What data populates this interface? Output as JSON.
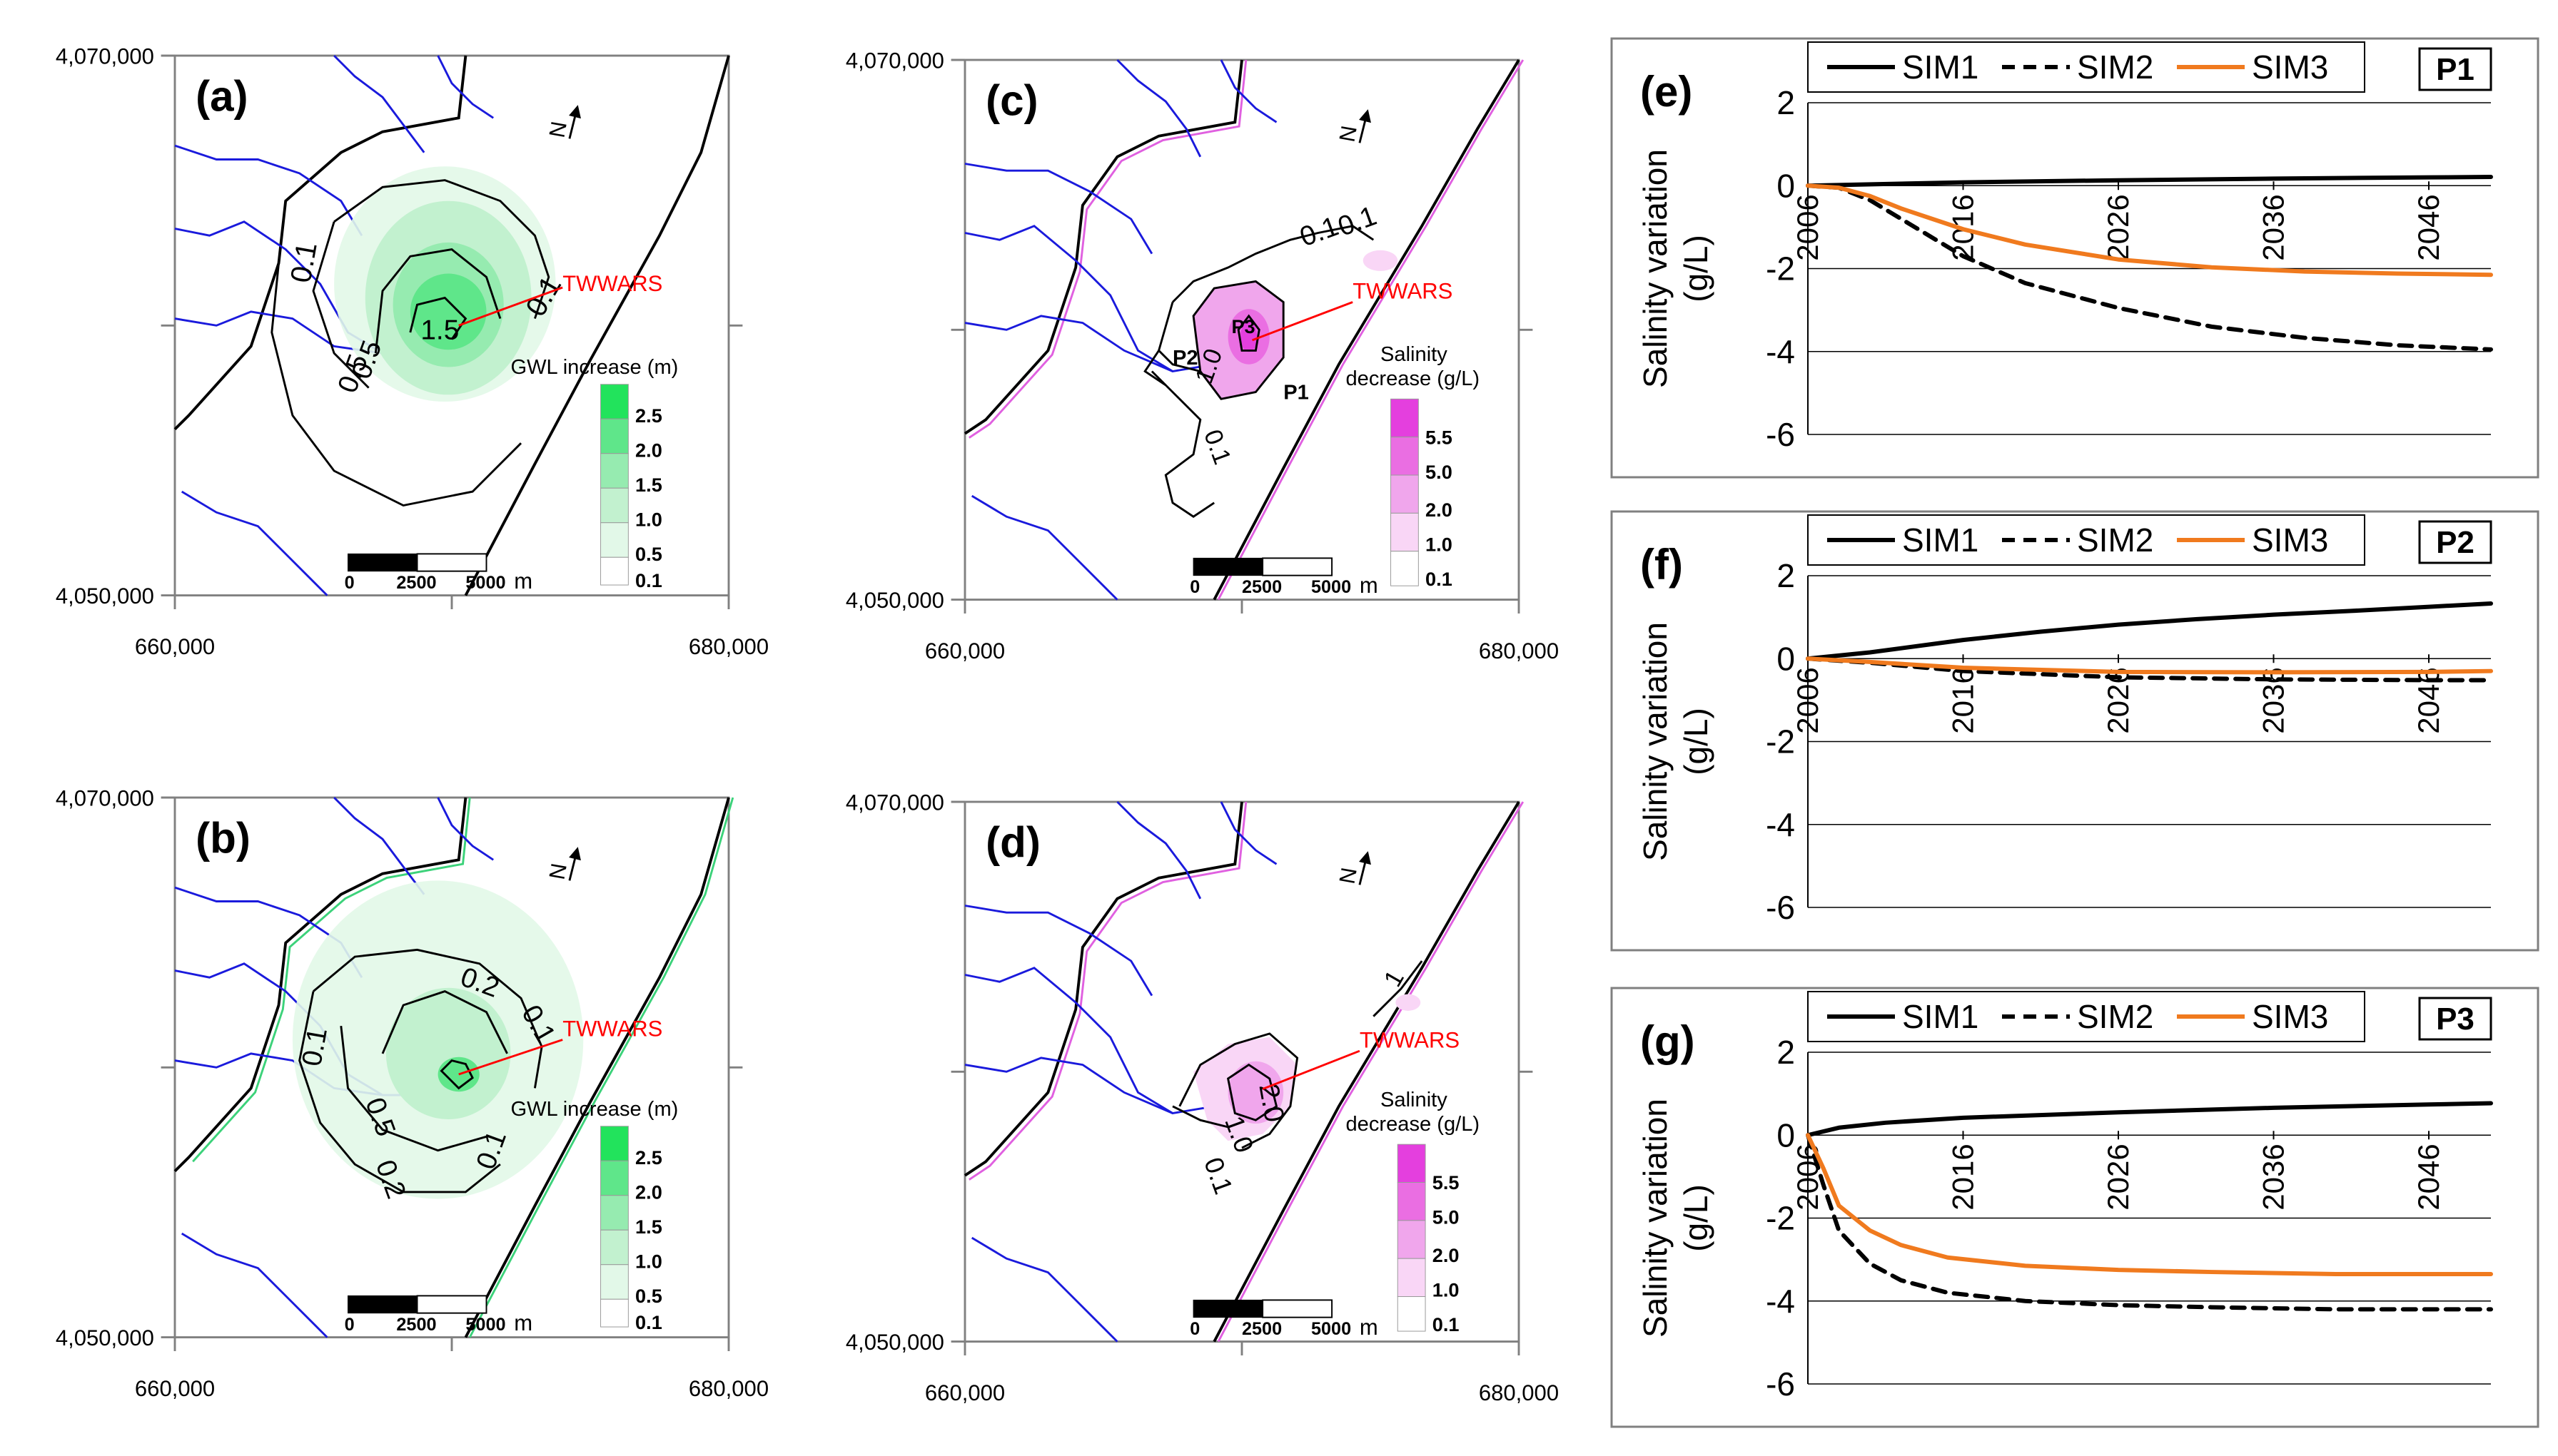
{
  "figure": {
    "colors": {
      "river": "#1a1adc",
      "contour": "#000000",
      "green_outline": "#3cd27a",
      "pink_outline": "#e060e0",
      "label_red": "#ff0000",
      "sim1": "#000000",
      "sim2": "#000000",
      "sim3": "#f07a1e",
      "green_scale": [
        "#ffffff",
        "#e2f8e8",
        "#c2f1cf",
        "#96ebb0",
        "#5fe68a",
        "#22e35c"
      ],
      "pink_scale": [
        "#ffffff",
        "#f9d6f6",
        "#f0a6ec",
        "#ea6ee2",
        "#e43fde"
      ]
    },
    "maps": [
      {
        "panel_label": "(a)",
        "y_top_label": "4,070,000",
        "y_bottom_label": "4,050,000",
        "x_left_label": "660,000",
        "x_right_label": "680,000",
        "north_symbol": "N",
        "site_label": "TWWARS",
        "legend_title": "GWL increase (m)",
        "legend_levels": [
          "2.5",
          "2.0",
          "1.5",
          "1.0",
          "0.5",
          "0.1"
        ],
        "scale_labels": [
          "0",
          "2500",
          "5000",
          "m"
        ],
        "contour_labels": [
          "0.1",
          "0.1",
          "1.5",
          "0.5",
          "0.5"
        ]
      },
      {
        "panel_label": "(b)",
        "y_top_label": "4,070,000",
        "y_bottom_label": "4,050,000",
        "x_left_label": "660,000",
        "x_right_label": "680,000",
        "north_symbol": "N",
        "site_label": "TWWARS",
        "legend_title": "GWL increase (m)",
        "legend_levels": [
          "2.5",
          "2.0",
          "1.5",
          "1.0",
          "0.5",
          "0.1"
        ],
        "scale_labels": [
          "0",
          "2500",
          "5000",
          "m"
        ],
        "contour_labels": [
          "0.2",
          "0.1",
          "0.1",
          "0.5",
          "0.2",
          "0.1"
        ]
      },
      {
        "panel_label": "(c)",
        "y_top_label": "4,070,000",
        "y_bottom_label": "4,050,000",
        "x_left_label": "660,000",
        "x_right_label": "680,000",
        "north_symbol": "N",
        "site_label": "TWWARS",
        "legend_title_1": "Salinity",
        "legend_title_2": "decrease (g/L)",
        "legend_levels": [
          "5.5",
          "5.0",
          "2.0",
          "1.0",
          "0.1"
        ],
        "scale_labels": [
          "0",
          "2500",
          "5000",
          "m"
        ],
        "contour_labels": [
          "0.1",
          "0.1",
          "1.0",
          "0.1"
        ],
        "point_labels": [
          "P1",
          "P2",
          "P3"
        ]
      },
      {
        "panel_label": "(d)",
        "y_top_label": "4,070,000",
        "y_bottom_label": "4,050,000",
        "x_left_label": "660,000",
        "x_right_label": "680,000",
        "north_symbol": "N",
        "site_label": "TWWARS",
        "legend_title_1": "Salinity",
        "legend_title_2": "decrease (g/L)",
        "legend_levels": [
          "5.5",
          "5.0",
          "2.0",
          "1.0",
          "0.1"
        ],
        "scale_labels": [
          "0",
          "2500",
          "5000",
          "m"
        ],
        "contour_labels": [
          "2.0",
          "1.0",
          "0.1",
          "1"
        ]
      }
    ]
  },
  "chart_data": [
    {
      "type": "line",
      "panel_label": "(e)",
      "point_label": "P1",
      "ylabel": "Salinity variation (g/L)",
      "ylabel_line1": "Salinity variation",
      "ylabel_line2": "(g/L)",
      "xlabel": "",
      "x_ticks": [
        "2006",
        "2016",
        "2026",
        "2036",
        "2046"
      ],
      "y_ticks": [
        "2",
        "0",
        "-2",
        "-4",
        "-6"
      ],
      "xlim": [
        2006,
        2050
      ],
      "ylim": [
        -6,
        2
      ],
      "grid": true,
      "legend": "top",
      "series": [
        {
          "name": "SIM1",
          "style": "solid",
          "x": [
            2006,
            2016,
            2026,
            2036,
            2046,
            2050
          ],
          "values": [
            0.0,
            0.08,
            0.13,
            0.17,
            0.2,
            0.21
          ]
        },
        {
          "name": "SIM2",
          "style": "dashed",
          "x": [
            2006,
            2008,
            2010,
            2012,
            2014,
            2016,
            2020,
            2026,
            2032,
            2038,
            2044,
            2050
          ],
          "values": [
            0.0,
            -0.05,
            -0.35,
            -0.8,
            -1.25,
            -1.7,
            -2.35,
            -2.95,
            -3.4,
            -3.67,
            -3.85,
            -3.95
          ]
        },
        {
          "name": "SIM3",
          "style": "solid",
          "x": [
            2006,
            2008,
            2010,
            2012,
            2014,
            2016,
            2020,
            2026,
            2032,
            2038,
            2044,
            2050
          ],
          "values": [
            0.0,
            -0.05,
            -0.25,
            -0.55,
            -0.8,
            -1.05,
            -1.42,
            -1.78,
            -1.97,
            -2.07,
            -2.12,
            -2.15
          ]
        }
      ]
    },
    {
      "type": "line",
      "panel_label": "(f)",
      "point_label": "P2",
      "ylabel": "Salinity variation (g/L)",
      "ylabel_line1": "Salinity variation",
      "ylabel_line2": "(g/L)",
      "xlabel": "",
      "x_ticks": [
        "2006",
        "2016",
        "2026",
        "2036",
        "2046"
      ],
      "y_ticks": [
        "2",
        "0",
        "-2",
        "-4",
        "-6"
      ],
      "xlim": [
        2006,
        2050
      ],
      "ylim": [
        -6,
        2
      ],
      "grid": true,
      "legend": "top",
      "series": [
        {
          "name": "SIM1",
          "style": "solid",
          "x": [
            2006,
            2010,
            2016,
            2021,
            2026,
            2031,
            2036,
            2041,
            2046,
            2050
          ],
          "values": [
            0.0,
            0.15,
            0.45,
            0.65,
            0.82,
            0.95,
            1.06,
            1.15,
            1.25,
            1.33
          ]
        },
        {
          "name": "SIM2",
          "style": "dashed",
          "x": [
            2006,
            2010,
            2016,
            2026,
            2036,
            2046,
            2050
          ],
          "values": [
            0.0,
            -0.1,
            -0.3,
            -0.45,
            -0.5,
            -0.52,
            -0.52
          ]
        },
        {
          "name": "SIM3",
          "style": "solid",
          "x": [
            2006,
            2010,
            2016,
            2026,
            2036,
            2046,
            2050
          ],
          "values": [
            0.0,
            -0.08,
            -0.22,
            -0.32,
            -0.33,
            -0.32,
            -0.3
          ]
        }
      ]
    },
    {
      "type": "line",
      "panel_label": "(g)",
      "point_label": "P3",
      "ylabel": "Salinity variation (g/L)",
      "ylabel_line1": "Salinity variation",
      "ylabel_line2": "(g/L)",
      "xlabel": "",
      "x_ticks": [
        "2006",
        "2016",
        "2026",
        "2036",
        "2046"
      ],
      "y_ticks": [
        "2",
        "0",
        "-2",
        "-4",
        "-6"
      ],
      "xlim": [
        2006,
        2050
      ],
      "ylim": [
        -6,
        2
      ],
      "grid": true,
      "legend": "top",
      "series": [
        {
          "name": "SIM1",
          "style": "solid",
          "x": [
            2006,
            2008,
            2011,
            2016,
            2026,
            2036,
            2046,
            2050
          ],
          "values": [
            0.0,
            0.18,
            0.3,
            0.42,
            0.55,
            0.66,
            0.74,
            0.77
          ]
        },
        {
          "name": "SIM2",
          "style": "dashed",
          "x": [
            2006,
            2007,
            2008,
            2010,
            2012,
            2015,
            2020,
            2026,
            2032,
            2040,
            2050
          ],
          "values": [
            0.0,
            -1.2,
            -2.3,
            -3.1,
            -3.5,
            -3.8,
            -4.0,
            -4.1,
            -4.15,
            -4.2,
            -4.2
          ]
        },
        {
          "name": "SIM3",
          "style": "solid",
          "x": [
            2006,
            2007,
            2008,
            2010,
            2012,
            2015,
            2020,
            2026,
            2032,
            2040,
            2050
          ],
          "values": [
            0.0,
            -0.8,
            -1.7,
            -2.3,
            -2.65,
            -2.95,
            -3.15,
            -3.25,
            -3.3,
            -3.35,
            -3.35
          ]
        }
      ]
    }
  ]
}
